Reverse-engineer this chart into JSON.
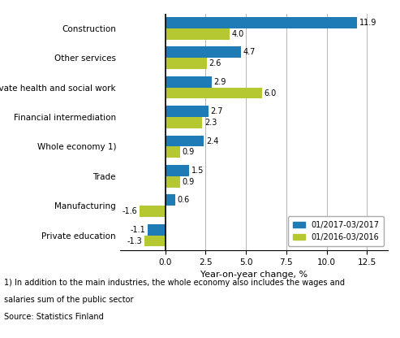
{
  "categories": [
    "Construction",
    "Other services",
    "Private health and social work",
    "Financial intermediation",
    "Whole economy 1)",
    "Trade",
    "Manufacturing",
    "Private education"
  ],
  "series_2017": [
    11.9,
    4.7,
    2.9,
    2.7,
    2.4,
    1.5,
    0.6,
    -1.1
  ],
  "series_2016": [
    4.0,
    2.6,
    6.0,
    2.3,
    0.9,
    0.9,
    -1.6,
    -1.3
  ],
  "color_2017": "#1f7bb5",
  "color_2016": "#b5c832",
  "legend_2017": "01/2017-03/2017",
  "legend_2016": "01/2016-03/2016",
  "xlabel": "Year-on-year change, %",
  "xlim": [
    -2.8,
    13.8
  ],
  "xticks": [
    0.0,
    2.5,
    5.0,
    7.5,
    10.0,
    12.5
  ],
  "footnote1": "1) In addition to the main industries, the whole economy also includes the wages and",
  "footnote2": "salaries sum of the public sector",
  "source": "Source: Statistics Finland",
  "bar_height": 0.38,
  "label_fontsize": 7.0,
  "tick_fontsize": 7.5,
  "axis_label_fontsize": 8.0
}
